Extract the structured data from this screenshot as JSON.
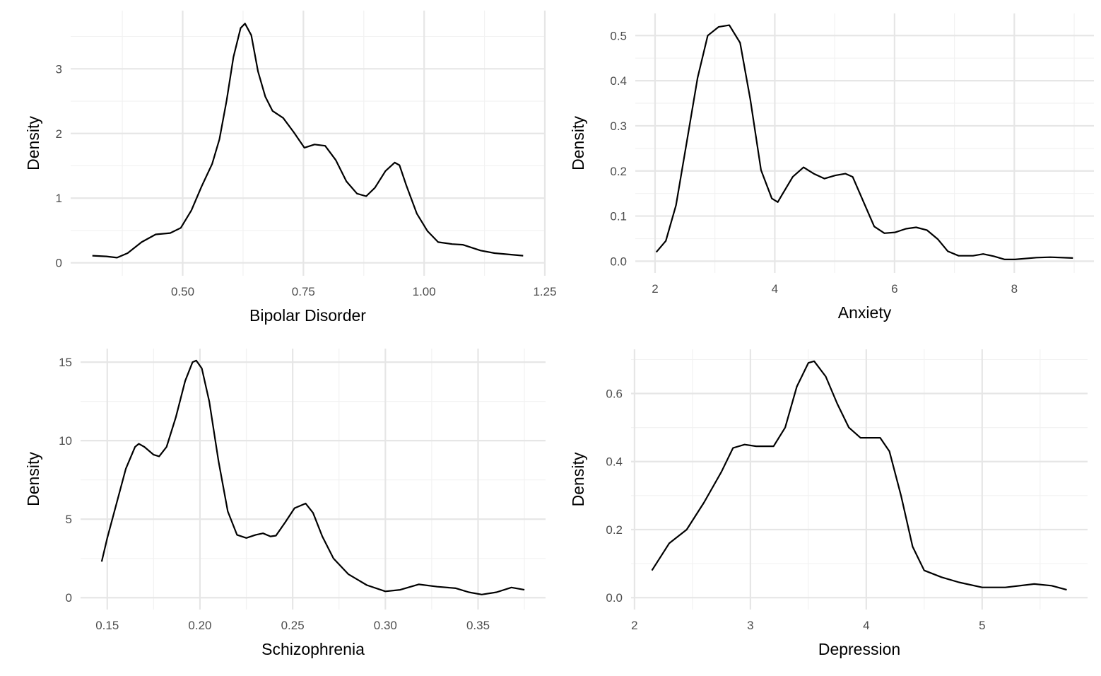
{
  "chart_data": [
    {
      "type": "line",
      "title": "",
      "xlabel": "Bipolar Disorder",
      "ylabel": "Density",
      "xlim": [
        0.268,
        1.25
      ],
      "ylim": [
        -0.2,
        3.9
      ],
      "xticks": [
        0.5,
        0.75,
        1.0,
        1.25
      ],
      "xtick_labels": [
        "0.50",
        "0.75",
        "1.00",
        "1.25"
      ],
      "yticks": [
        0,
        1,
        2,
        3
      ],
      "ytick_labels": [
        "0",
        "1",
        "2",
        "3"
      ],
      "grid": true,
      "x": [
        0.313,
        0.342,
        0.364,
        0.386,
        0.415,
        0.444,
        0.474,
        0.496,
        0.518,
        0.539,
        0.561,
        0.576,
        0.591,
        0.605,
        0.62,
        0.629,
        0.642,
        0.656,
        0.671,
        0.686,
        0.708,
        0.73,
        0.752,
        0.773,
        0.795,
        0.817,
        0.839,
        0.861,
        0.88,
        0.898,
        0.92,
        0.939,
        0.949,
        0.963,
        0.985,
        1.007,
        1.029,
        1.058,
        1.08,
        1.117,
        1.146,
        1.205
      ],
      "y": [
        0.11,
        0.1,
        0.08,
        0.15,
        0.32,
        0.44,
        0.46,
        0.54,
        0.81,
        1.18,
        1.53,
        1.91,
        2.51,
        3.18,
        3.63,
        3.7,
        3.52,
        2.96,
        2.57,
        2.35,
        2.24,
        2.02,
        1.78,
        1.83,
        1.81,
        1.59,
        1.26,
        1.07,
        1.03,
        1.16,
        1.42,
        1.55,
        1.51,
        1.2,
        0.76,
        0.49,
        0.32,
        0.29,
        0.28,
        0.19,
        0.15,
        0.11
      ]
    },
    {
      "type": "line",
      "title": "",
      "xlabel": "Anxiety",
      "ylabel": "Density",
      "xlim": [
        1.67,
        9.33
      ],
      "ylim": [
        -0.026,
        0.549
      ],
      "xticks": [
        2,
        4,
        6,
        8
      ],
      "xtick_labels": [
        "2",
        "4",
        "6",
        "8"
      ],
      "yticks": [
        0,
        0.1,
        0.2,
        0.3,
        0.4,
        0.5
      ],
      "ytick_labels": [
        "0.0",
        "0.1",
        "0.2",
        "0.3",
        "0.4",
        "0.5"
      ],
      "grid": true,
      "x": [
        2.02,
        2.18,
        2.35,
        2.53,
        2.71,
        2.88,
        3.06,
        3.24,
        3.42,
        3.59,
        3.77,
        3.95,
        4.05,
        4.12,
        4.3,
        4.48,
        4.65,
        4.83,
        5.01,
        5.18,
        5.3,
        5.48,
        5.66,
        5.83,
        6.01,
        6.19,
        6.36,
        6.54,
        6.72,
        6.89,
        7.07,
        7.31,
        7.48,
        7.66,
        7.84,
        8.01,
        8.37,
        8.6,
        8.98
      ],
      "y": [
        0.02,
        0.045,
        0.124,
        0.265,
        0.406,
        0.5,
        0.519,
        0.523,
        0.484,
        0.359,
        0.202,
        0.139,
        0.131,
        0.147,
        0.187,
        0.208,
        0.194,
        0.183,
        0.19,
        0.194,
        0.187,
        0.132,
        0.077,
        0.062,
        0.064,
        0.072,
        0.075,
        0.069,
        0.049,
        0.022,
        0.012,
        0.012,
        0.016,
        0.011,
        0.004,
        0.004,
        0.008,
        0.009,
        0.007
      ]
    },
    {
      "type": "line",
      "title": "",
      "xlabel": "Schizophrenia",
      "ylabel": "Density",
      "xlim": [
        0.1356,
        0.3864
      ],
      "ylim": [
        -0.755,
        15.86
      ],
      "xticks": [
        0.15,
        0.2,
        0.25,
        0.3,
        0.35
      ],
      "xtick_labels": [
        "0.15",
        "0.20",
        "0.25",
        "0.30",
        "0.35"
      ],
      "yticks": [
        0,
        5,
        10,
        15
      ],
      "ytick_labels": [
        "0",
        "5",
        "10",
        "15"
      ],
      "grid": true,
      "x": [
        0.147,
        0.15,
        0.155,
        0.16,
        0.165,
        0.167,
        0.17,
        0.175,
        0.178,
        0.182,
        0.187,
        0.192,
        0.196,
        0.198,
        0.201,
        0.205,
        0.21,
        0.215,
        0.22,
        0.225,
        0.23,
        0.234,
        0.238,
        0.241,
        0.246,
        0.251,
        0.257,
        0.261,
        0.266,
        0.272,
        0.28,
        0.29,
        0.3,
        0.308,
        0.318,
        0.328,
        0.338,
        0.345,
        0.352,
        0.36,
        0.368,
        0.375
      ],
      "y": [
        2.3,
        3.8,
        6.0,
        8.2,
        9.6,
        9.8,
        9.6,
        9.1,
        9.0,
        9.6,
        11.5,
        13.8,
        15.0,
        15.1,
        14.6,
        12.5,
        8.7,
        5.5,
        4.0,
        3.8,
        4.0,
        4.1,
        3.9,
        3.95,
        4.8,
        5.7,
        6.0,
        5.4,
        3.9,
        2.5,
        1.5,
        0.8,
        0.4,
        0.5,
        0.85,
        0.7,
        0.6,
        0.35,
        0.2,
        0.35,
        0.65,
        0.5
      ]
    },
    {
      "type": "line",
      "title": "",
      "xlabel": "Depression",
      "ylabel": "Density",
      "xlim": [
        1.97,
        5.91
      ],
      "ylim": [
        -0.035,
        0.73
      ],
      "xticks": [
        2,
        3,
        4,
        5
      ],
      "xtick_labels": [
        "2",
        "3",
        "4",
        "5"
      ],
      "yticks": [
        0,
        0.2,
        0.4,
        0.6
      ],
      "ytick_labels": [
        "0.0",
        "0.2",
        "0.4",
        "0.6"
      ],
      "grid": true,
      "x": [
        2.15,
        2.3,
        2.45,
        2.6,
        2.75,
        2.85,
        2.95,
        3.05,
        3.2,
        3.3,
        3.4,
        3.5,
        3.55,
        3.65,
        3.75,
        3.85,
        3.95,
        4.05,
        4.12,
        4.2,
        4.3,
        4.4,
        4.5,
        4.65,
        4.8,
        5.0,
        5.2,
        5.45,
        5.6,
        5.73
      ],
      "y": [
        0.08,
        0.16,
        0.2,
        0.28,
        0.37,
        0.44,
        0.45,
        0.445,
        0.445,
        0.5,
        0.62,
        0.69,
        0.695,
        0.65,
        0.57,
        0.5,
        0.47,
        0.47,
        0.47,
        0.43,
        0.3,
        0.15,
        0.08,
        0.06,
        0.045,
        0.03,
        0.03,
        0.04,
        0.035,
        0.023
      ]
    }
  ]
}
